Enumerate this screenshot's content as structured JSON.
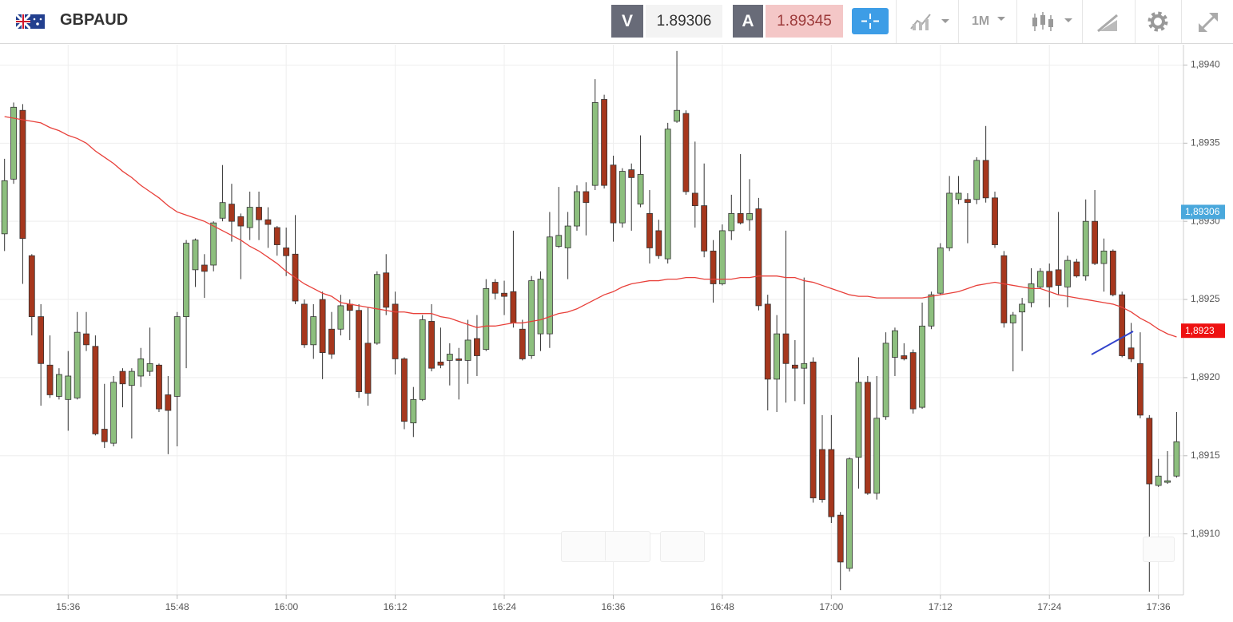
{
  "header": {
    "symbol": "GBPAUD",
    "sell_label": "V",
    "sell_price": "1.89306",
    "buy_label": "A",
    "buy_price": "1.89345",
    "timeframe": "1M"
  },
  "chart_data": {
    "type": "candlestick",
    "categories": [
      null,
      null,
      null,
      null,
      null,
      null,
      null,
      "15:36",
      null,
      null,
      null,
      null,
      null,
      null,
      null,
      null,
      null,
      null,
      null,
      "15:48",
      null,
      null,
      null,
      null,
      null,
      null,
      null,
      null,
      null,
      null,
      null,
      "16:00",
      null,
      null,
      null,
      null,
      null,
      null,
      null,
      null,
      null,
      null,
      null,
      "16:12",
      null,
      null,
      null,
      null,
      null,
      null,
      null,
      null,
      null,
      null,
      null,
      "16:24",
      null,
      null,
      null,
      null,
      null,
      null,
      null,
      null,
      null,
      null,
      null,
      "16:36",
      null,
      null,
      null,
      null,
      null,
      null,
      null,
      null,
      null,
      null,
      null,
      "16:48",
      null,
      null,
      null,
      null,
      null,
      null,
      null,
      null,
      null,
      null,
      null,
      "17:00",
      null,
      null,
      null,
      null,
      null,
      null,
      null,
      null,
      null,
      null,
      null,
      "17:12",
      null,
      null,
      null,
      null,
      null,
      null,
      null,
      null,
      null,
      null,
      null,
      "17:24",
      null,
      null,
      null,
      null,
      null,
      null,
      null,
      null,
      null,
      null,
      null,
      "17:36",
      null,
      null
    ],
    "open": [
      1.89292,
      1.89327,
      1.89371,
      1.89278,
      1.89239,
      1.89208,
      1.89188,
      1.89186,
      1.89187,
      1.89228,
      1.8922,
      1.89167,
      1.89158,
      1.89204,
      1.89195,
      1.89201,
      1.89204,
      1.89208,
      1.89189,
      1.89188,
      1.89239,
      1.89269,
      1.89272,
      1.89272,
      1.89302,
      1.89311,
      1.89303,
      1.89296,
      1.89309,
      1.89301,
      1.89296,
      1.89283,
      1.89279,
      1.89247,
      1.89221,
      1.8925,
      1.89231,
      1.89231,
      1.89247,
      1.89243,
      1.89222,
      1.89222,
      1.89267,
      1.89247,
      1.89212,
      1.89171,
      1.89186,
      1.89236,
      1.8921,
      1.89211,
      1.89212,
      1.89211,
      1.89225,
      1.89218,
      1.89261,
      1.89254,
      1.89255,
      1.89231,
      1.89214,
      1.89228,
      1.89228,
      1.89284,
      1.89283,
      1.89297,
      1.89319,
      1.89323,
      1.89378,
      1.89336,
      1.89299,
      1.89333,
      1.89311,
      1.89305,
      1.89294,
      1.89276,
      1.89364,
      1.89369,
      1.89318,
      1.8931,
      1.89281,
      1.8926,
      1.89294,
      1.89305,
      1.89301,
      1.89308,
      1.89247,
      1.89199,
      1.89228,
      1.89208,
      1.89206,
      1.8921,
      1.89154,
      1.89154,
      1.89112,
      1.89078,
      1.89149,
      1.89197,
      1.89126,
      1.89175,
      1.89213,
      1.89214,
      1.89216,
      1.89181,
      1.89233,
      1.89254,
      1.89283,
      1.89314,
      1.89314,
      1.89314,
      1.89339,
      1.89315,
      1.89278,
      1.89235,
      1.89242,
      1.89248,
      1.89258,
      1.89268,
      1.89269,
      1.89258,
      1.89274,
      1.89265,
      1.893,
      1.89273,
      1.89281,
      1.89253,
      1.89219,
      1.89209,
      1.89174,
      1.89131,
      1.89133,
      1.89137
    ],
    "high": [
      1.8934,
      1.89376,
      1.89375,
      1.89279,
      1.89247,
      1.89227,
      1.89206,
      1.89217,
      1.89242,
      1.89242,
      1.89227,
      1.89196,
      1.89201,
      1.89206,
      1.89206,
      1.89219,
      1.89232,
      1.89209,
      1.89201,
      1.89242,
      1.89288,
      1.89289,
      1.89279,
      1.893,
      1.89336,
      1.89324,
      1.89305,
      1.89319,
      1.89319,
      1.89309,
      1.89297,
      1.89296,
      1.89304,
      1.8925,
      1.89247,
      1.89255,
      1.89242,
      1.89253,
      1.8925,
      1.89247,
      1.89245,
      1.89268,
      1.89279,
      1.89255,
      1.89213,
      1.89194,
      1.8924,
      1.89247,
      1.89232,
      1.89222,
      1.89219,
      1.89237,
      1.8924,
      1.89263,
      1.89263,
      1.89262,
      1.89294,
      1.89237,
      1.89265,
      1.89268,
      1.89306,
      1.89322,
      1.89306,
      1.89323,
      1.89325,
      1.89391,
      1.89381,
      1.89342,
      1.89334,
      1.89337,
      1.89355,
      1.8932,
      1.89301,
      1.89363,
      1.89409,
      1.89371,
      1.89351,
      1.89337,
      1.89288,
      1.89298,
      1.89317,
      1.89343,
      1.89327,
      1.89315,
      1.89253,
      1.8924,
      1.89294,
      1.89224,
      1.89264,
      1.89213,
      1.89176,
      1.89176,
      1.89114,
      1.89149,
      1.89213,
      1.89201,
      1.89201,
      1.89229,
      1.89232,
      1.89222,
      1.89218,
      1.89248,
      1.89255,
      1.89286,
      1.89329,
      1.89329,
      1.89318,
      1.89341,
      1.89361,
      1.89319,
      1.89281,
      1.89242,
      1.89251,
      1.8927,
      1.8927,
      1.89273,
      1.89306,
      1.89278,
      1.89276,
      1.89314,
      1.8932,
      1.89289,
      1.89282,
      1.89255,
      1.89235,
      1.89229,
      1.89176,
      1.89148,
      1.89153,
      1.89178
    ],
    "low": [
      1.89281,
      1.89324,
      1.8926,
      1.89227,
      1.89182,
      1.89187,
      1.89186,
      1.89166,
      1.89186,
      1.89217,
      1.89163,
      1.89155,
      1.89156,
      1.89181,
      1.89161,
      1.89194,
      1.89201,
      1.89178,
      1.89151,
      1.89156,
      1.89206,
      1.89258,
      1.89251,
      1.89268,
      1.893,
      1.89287,
      1.89263,
      1.89288,
      1.89288,
      1.89283,
      1.89278,
      1.89265,
      1.89247,
      1.89219,
      1.89212,
      1.89199,
      1.89212,
      1.89227,
      1.89224,
      1.89187,
      1.89182,
      1.89221,
      1.8924,
      1.89202,
      1.89167,
      1.89162,
      1.89185,
      1.89204,
      1.89206,
      1.89195,
      1.89186,
      1.89196,
      1.89201,
      1.89217,
      1.8925,
      1.8924,
      1.89232,
      1.89211,
      1.89212,
      1.89217,
      1.89219,
      1.89283,
      1.89263,
      1.89294,
      1.89291,
      1.8932,
      1.89321,
      1.89287,
      1.89296,
      1.89294,
      1.89309,
      1.89273,
      1.89276,
      1.89273,
      1.89363,
      1.89317,
      1.89296,
      1.89277,
      1.89248,
      1.89259,
      1.89288,
      1.89298,
      1.89294,
      1.89243,
      1.89179,
      1.89178,
      1.89184,
      1.89185,
      1.89183,
      1.8912,
      1.8912,
      1.89107,
      1.89064,
      1.89076,
      1.89129,
      1.89125,
      1.89122,
      1.89173,
      1.89201,
      1.89211,
      1.89177,
      1.8918,
      1.89231,
      1.89253,
      1.89281,
      1.89311,
      1.89286,
      1.89311,
      1.89312,
      1.89283,
      1.89232,
      1.89204,
      1.89217,
      1.89245,
      1.89257,
      1.89245,
      1.89253,
      1.89245,
      1.89264,
      1.89262,
      1.89272,
      1.89255,
      1.89252,
      1.89213,
      1.8921,
      1.89174,
      1.89063,
      1.8913,
      1.89132,
      1.89136
    ],
    "close": [
      1.89326,
      1.89373,
      1.89289,
      1.89239,
      1.89209,
      1.89189,
      1.89202,
      1.89201,
      1.89229,
      1.89221,
      1.89164,
      1.89159,
      1.89197,
      1.89196,
      1.89204,
      1.89212,
      1.89209,
      1.8918,
      1.89179,
      1.89239,
      1.89286,
      1.89288,
      1.89268,
      1.89299,
      1.89312,
      1.893,
      1.89297,
      1.89309,
      1.89301,
      1.89298,
      1.89285,
      1.89278,
      1.89249,
      1.89221,
      1.89239,
      1.89216,
      1.89215,
      1.89246,
      1.89243,
      1.89191,
      1.8919,
      1.89266,
      1.89245,
      1.89212,
      1.89172,
      1.89186,
      1.89237,
      1.89206,
      1.89208,
      1.89215,
      1.89211,
      1.89224,
      1.89214,
      1.89257,
      1.89254,
      1.89252,
      1.89235,
      1.89212,
      1.89262,
      1.89263,
      1.8929,
      1.89291,
      1.89297,
      1.89319,
      1.89312,
      1.89376,
      1.89323,
      1.89299,
      1.89332,
      1.89328,
      1.8933,
      1.89283,
      1.89278,
      1.89359,
      1.89371,
      1.89319,
      1.8931,
      1.89281,
      1.8926,
      1.89294,
      1.89305,
      1.89299,
      1.89305,
      1.89246,
      1.89199,
      1.89228,
      1.89209,
      1.89206,
      1.89209,
      1.89123,
      1.89122,
      1.89111,
      1.89082,
      1.89148,
      1.89197,
      1.89126,
      1.89174,
      1.89222,
      1.8923,
      1.89212,
      1.8918,
      1.89233,
      1.89253,
      1.89283,
      1.89318,
      1.89318,
      1.89312,
      1.89339,
      1.89315,
      1.89285,
      1.89235,
      1.8924,
      1.89247,
      1.8926,
      1.89268,
      1.89258,
      1.89259,
      1.89275,
      1.89265,
      1.893,
      1.89273,
      1.89281,
      1.89253,
      1.89214,
      1.89212,
      1.89176,
      1.89132,
      1.89137,
      1.89134,
      1.89159
    ],
    "up_color": "#8dbf7e",
    "down_color": "#a6371d",
    "wick_color": "#333333",
    "moving_average": {
      "color": "#e8403a",
      "values": [
        1.89367,
        1.89366,
        1.89365,
        1.89364,
        1.89363,
        1.8936,
        1.89358,
        1.89355,
        1.89353,
        1.8935,
        1.89345,
        1.89341,
        1.89337,
        1.89332,
        1.89328,
        1.89323,
        1.89319,
        1.89315,
        1.8931,
        1.89306,
        1.89304,
        1.89302,
        1.893,
        1.89297,
        1.89294,
        1.89291,
        1.89288,
        1.89284,
        1.89281,
        1.89277,
        1.89273,
        1.89268,
        1.89264,
        1.8926,
        1.89257,
        1.89254,
        1.89252,
        1.89248,
        1.89247,
        1.89246,
        1.89245,
        1.89244,
        1.89243,
        1.89242,
        1.89242,
        1.89241,
        1.89241,
        1.89241,
        1.89239,
        1.89238,
        1.89236,
        1.89234,
        1.89232,
        1.89233,
        1.89233,
        1.89234,
        1.89235,
        1.89235,
        1.89236,
        1.89237,
        1.89239,
        1.89241,
        1.89242,
        1.89244,
        1.89247,
        1.8925,
        1.89253,
        1.89255,
        1.89258,
        1.8926,
        1.89261,
        1.89262,
        1.89262,
        1.89263,
        1.89263,
        1.89264,
        1.89264,
        1.89263,
        1.89263,
        1.89263,
        1.89263,
        1.89264,
        1.89264,
        1.89265,
        1.89265,
        1.89265,
        1.89264,
        1.89264,
        1.89262,
        1.89261,
        1.89259,
        1.89257,
        1.89255,
        1.89253,
        1.89252,
        1.89252,
        1.89251,
        1.89251,
        1.89251,
        1.89251,
        1.89251,
        1.89251,
        1.89252,
        1.89253,
        1.89254,
        1.89255,
        1.89257,
        1.89259,
        1.8926,
        1.89261,
        1.8926,
        1.89259,
        1.89258,
        1.89257,
        1.89257,
        1.89255,
        1.89253,
        1.89252,
        1.89251,
        1.8925,
        1.89249,
        1.89248,
        1.89247,
        1.89245,
        1.89242,
        1.89238,
        1.89235,
        1.89231,
        1.89228,
        1.89226
      ]
    },
    "ylim": [
      1.89061,
      1.89413
    ],
    "yticks": [
      {
        "value": 1.891,
        "label": "1,8910"
      },
      {
        "value": 1.8915,
        "label": "1,8915"
      },
      {
        "value": 1.892,
        "label": "1,8920"
      },
      {
        "value": 1.8925,
        "label": "1,8925"
      },
      {
        "value": 1.893,
        "label": "1,8930"
      },
      {
        "value": 1.8935,
        "label": "1,8935"
      },
      {
        "value": 1.894,
        "label": "1,8940"
      }
    ],
    "grid": true,
    "price_labels": [
      {
        "value": 1.89306,
        "label": "1,89306",
        "color": "#4aa8dc"
      },
      {
        "value": 1.8923,
        "label": "1,8923",
        "color": "#ee1111"
      }
    ]
  }
}
